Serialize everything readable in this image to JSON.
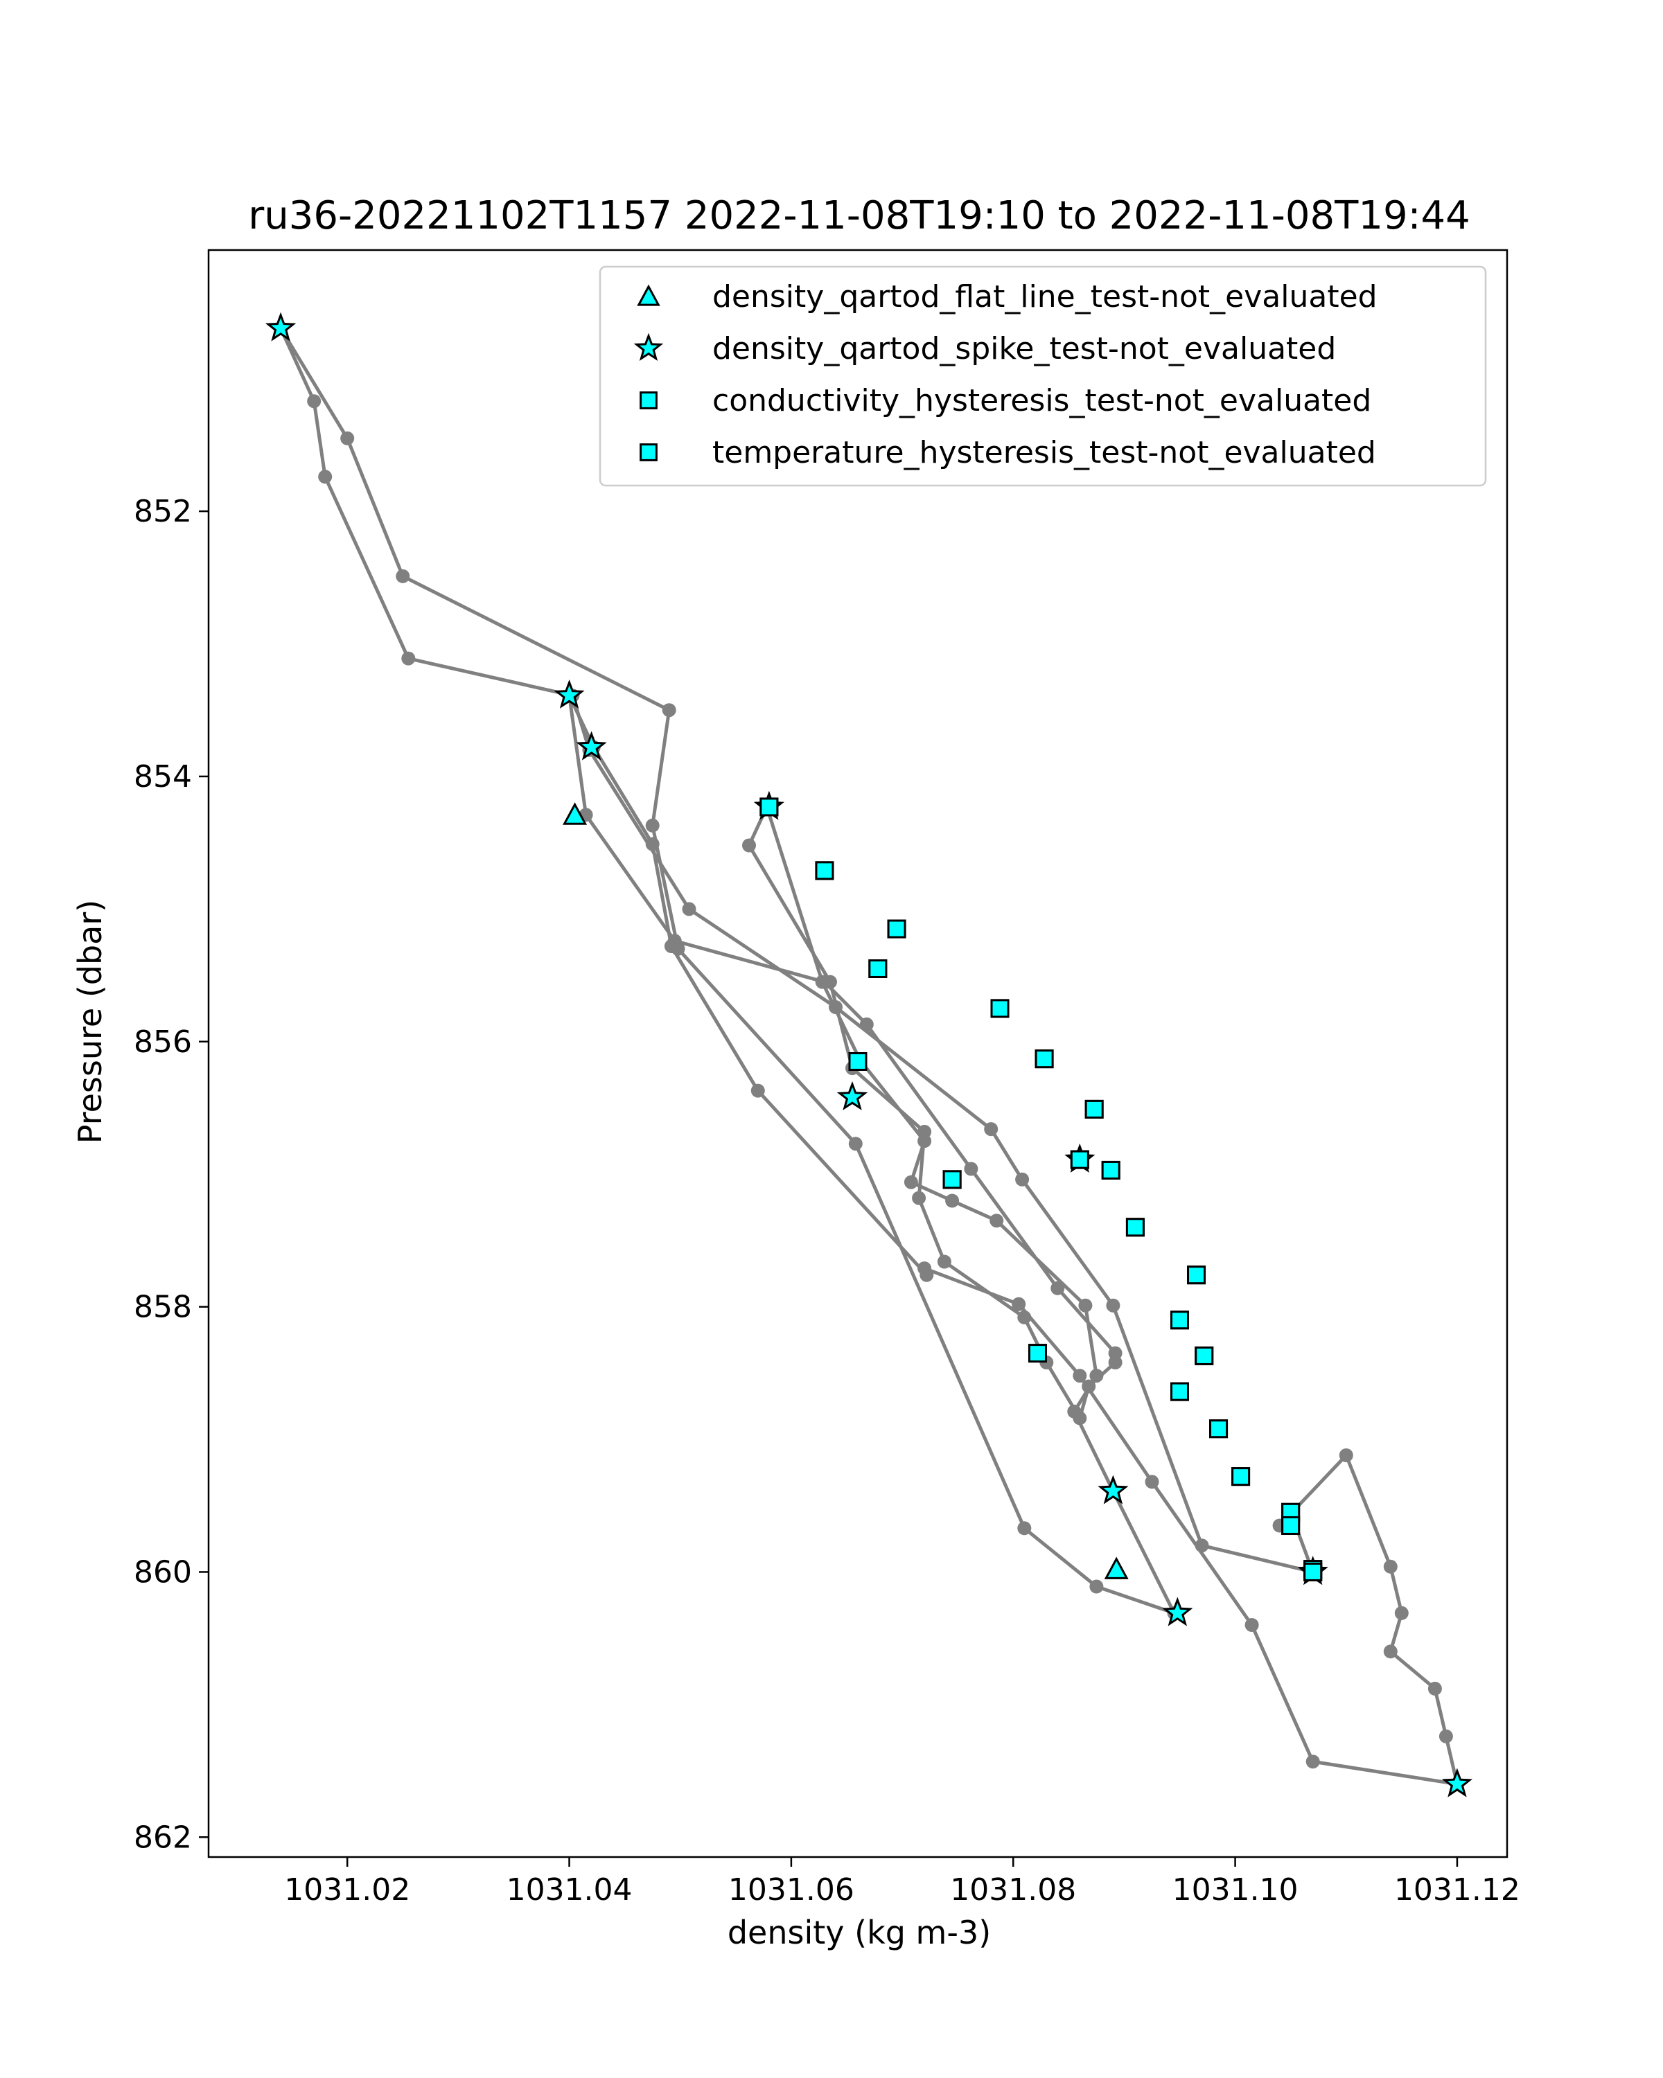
{
  "colors": {
    "line": "#808080",
    "marker_fill": "#00ffff",
    "marker_edge": "#000000"
  },
  "chart_data": {
    "type": "line",
    "title": "ru36-20221102T1157 2022-11-08T19:10 to 2022-11-08T19:44",
    "xlabel": "density (kg m-3)",
    "ylabel": "Pressure (dbar)",
    "xlim": [
      1031.0075,
      1031.1245
    ],
    "ylim": [
      862.15,
      850.03
    ],
    "y_inverted": true,
    "grid": false,
    "legend_position": "top-right",
    "x_ticks": [
      {
        "value": 1031.02,
        "label": "1031.02"
      },
      {
        "value": 1031.04,
        "label": "1031.04"
      },
      {
        "value": 1031.06,
        "label": "1031.06"
      },
      {
        "value": 1031.08,
        "label": "1031.08"
      },
      {
        "value": 1031.1,
        "label": "1031.10"
      },
      {
        "value": 1031.12,
        "label": "1031.12"
      }
    ],
    "y_ticks": [
      {
        "value": 852,
        "label": "852"
      },
      {
        "value": 854,
        "label": "854"
      },
      {
        "value": 856,
        "label": "856"
      },
      {
        "value": 858,
        "label": "858"
      },
      {
        "value": 860,
        "label": "860"
      },
      {
        "value": 862,
        "label": "862"
      }
    ],
    "profile": {
      "x": [
        1031.12,
        1031.107,
        1031.1015,
        1031.0925,
        1031.086,
        1031.0805,
        1031.072,
        1031.0722,
        1031.057,
        1031.0492,
        1031.0475,
        1031.0422,
        1031.04,
        1031.0415,
        1031.0495,
        1031.063,
        1031.0668,
        1031.0762,
        1031.084,
        1031.0892,
        1031.0892,
        1031.0868,
        1031.086,
        1031.083,
        1031.081,
        1031.0738,
        1031.0715,
        1031.072,
        1031.0655,
        1031.0635,
        1031.0562,
        1031.0578,
        1031.0628,
        1031.0662,
        1031.072,
        1031.0708,
        1031.0745,
        1031.0785,
        1031.0865,
        1031.0875,
        1031.0855,
        1031.089,
        1031.0945,
        1031.0875,
        1031.081,
        1031.0658,
        1031.0498,
        1031.0475,
        1031.049,
        1031.025,
        1031.02,
        1031.014,
        1031.017,
        1031.018,
        1031.0255,
        1031.0403,
        1031.0418,
        1031.0508,
        1031.064,
        1031.078,
        1031.0808,
        1031.089,
        1031.097,
        1031.107,
        1031.105,
        1031.104,
        1031.11,
        1031.114,
        1031.115,
        1031.114,
        1031.118,
        1031.119,
        1031.12
      ],
      "y": [
        861.6,
        861.43,
        860.4,
        859.32,
        858.52,
        857.98,
        857.71,
        857.76,
        856.37,
        855.28,
        854.51,
        853.78,
        853.39,
        854.29,
        855.24,
        855.55,
        855.87,
        856.96,
        857.86,
        858.35,
        858.42,
        858.6,
        858.84,
        858.42,
        858.08,
        857.66,
        857.18,
        856.68,
        856.2,
        855.55,
        854.52,
        854.23,
        855.55,
        856.14,
        856.75,
        857.06,
        857.2,
        857.35,
        857.99,
        858.52,
        858.79,
        859.39,
        860.31,
        860.11,
        859.67,
        856.77,
        855.3,
        854.37,
        853.5,
        852.49,
        851.45,
        850.62,
        851.17,
        851.74,
        853.11,
        853.39,
        853.8,
        855.0,
        855.74,
        856.66,
        857.04,
        857.99,
        859.8,
        860.0,
        859.55,
        859.65,
        859.12,
        859.96,
        860.31,
        860.6,
        860.88,
        861.24,
        861.6
      ]
    },
    "series": [
      {
        "name": "density_qartod_flat_line_test-not_evaluated",
        "marker": "triangle",
        "x": [
          1031.0405,
          1031.0893
        ],
        "y": [
          854.29,
          859.98
        ]
      },
      {
        "name": "density_qartod_spike_test-not_evaluated",
        "marker": "star",
        "x": [
          1031.014,
          1031.04,
          1031.042,
          1031.058,
          1031.0655,
          1031.086,
          1031.089,
          1031.0948,
          1031.107,
          1031.12
        ],
        "y": [
          850.62,
          853.39,
          853.78,
          854.23,
          856.42,
          856.89,
          859.39,
          860.31,
          860.0,
          861.6
        ]
      },
      {
        "name": "conductivity_hysteresis_test-not_evaluated",
        "marker": "square",
        "x": [
          1031.058,
          1031.063,
          1031.0695,
          1031.0678,
          1031.0788,
          1031.0828,
          1031.0873,
          1031.0888,
          1031.091,
          1031.0965,
          1031.095,
          1031.0972,
          1031.095,
          1031.0985,
          1031.1005,
          1031.105,
          1031.105,
          1031.107,
          1031.107,
          1031.066,
          1031.0745,
          1031.0822,
          1031.086
        ],
        "y": [
          854.23,
          854.71,
          855.15,
          855.45,
          855.75,
          856.13,
          856.51,
          856.97,
          857.4,
          857.76,
          858.1,
          858.37,
          858.64,
          858.92,
          859.28,
          859.55,
          859.65,
          859.98,
          860.0,
          856.15,
          857.04,
          858.35,
          856.89
        ]
      },
      {
        "name": "temperature_hysteresis_test-not_evaluated",
        "marker": "square",
        "x": [
          1031.058,
          1031.063,
          1031.0695,
          1031.0678,
          1031.0788,
          1031.0828,
          1031.0873,
          1031.0888,
          1031.091,
          1031.0965,
          1031.095,
          1031.0972,
          1031.095,
          1031.0985,
          1031.1005,
          1031.105,
          1031.105,
          1031.107,
          1031.107,
          1031.066,
          1031.0745,
          1031.0822,
          1031.086
        ],
        "y": [
          854.23,
          854.71,
          855.15,
          855.45,
          855.75,
          856.13,
          856.51,
          856.97,
          857.4,
          857.76,
          858.1,
          858.37,
          858.64,
          858.92,
          859.28,
          859.55,
          859.65,
          859.98,
          860.0,
          856.15,
          857.04,
          858.35,
          856.89
        ]
      }
    ]
  }
}
